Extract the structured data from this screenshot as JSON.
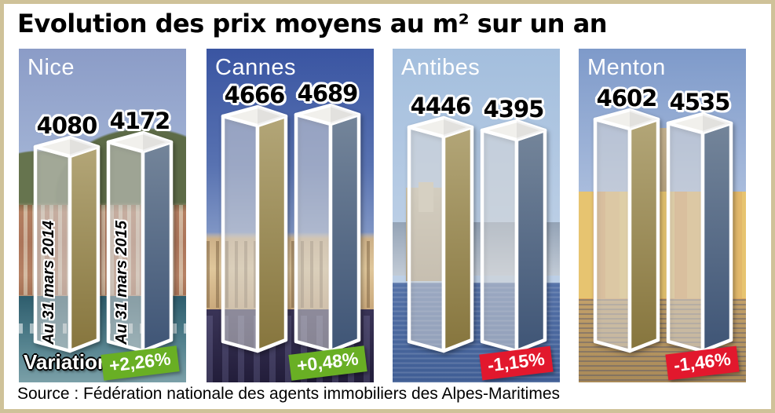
{
  "title": "Evolution des prix moyens au m² sur un an",
  "source": "Source : Fédération nationale des agents immobiliers des Alpes-Maritimes",
  "chart_data": {
    "type": "bar",
    "title": "Evolution des prix moyens au m² sur un an",
    "series_labels": [
      "Au 31 mars 2014",
      "Au 31 mars 2015"
    ],
    "panels": [
      {
        "city": "Nice",
        "bars": [
          {
            "label": "Au 31 mars 2014",
            "value": 4080
          },
          {
            "label": "Au 31 mars 2015",
            "value": 4172
          }
        ],
        "variation_label": "Variation",
        "variation": "+2,26%",
        "variation_color": "#69af24"
      },
      {
        "city": "Cannes",
        "bars": [
          {
            "label": "",
            "value": 4666
          },
          {
            "label": "",
            "value": 4689
          }
        ],
        "variation": "+0,48%",
        "variation_color": "#69af24"
      },
      {
        "city": "Antibes",
        "bars": [
          {
            "label": "",
            "value": 4446
          },
          {
            "label": "",
            "value": 4395
          }
        ],
        "variation": "-1,15%",
        "variation_color": "#e2182d"
      },
      {
        "city": "Menton",
        "bars": [
          {
            "label": "",
            "value": 4602
          },
          {
            "label": "",
            "value": 4535
          }
        ],
        "variation": "-1,46%",
        "variation_color": "#e2182d"
      }
    ],
    "colors": {
      "side_2014": [
        "#b3a678",
        "#86753d"
      ],
      "side_2015": [
        "#74859a",
        "#3f5576"
      ],
      "front_face": "rgba(255,255,255,0.45)",
      "top_face": "#f1f0ec",
      "positive_badge": "#69af24",
      "negative_badge": "#e2182d",
      "frame_border": "#cfc299"
    }
  }
}
